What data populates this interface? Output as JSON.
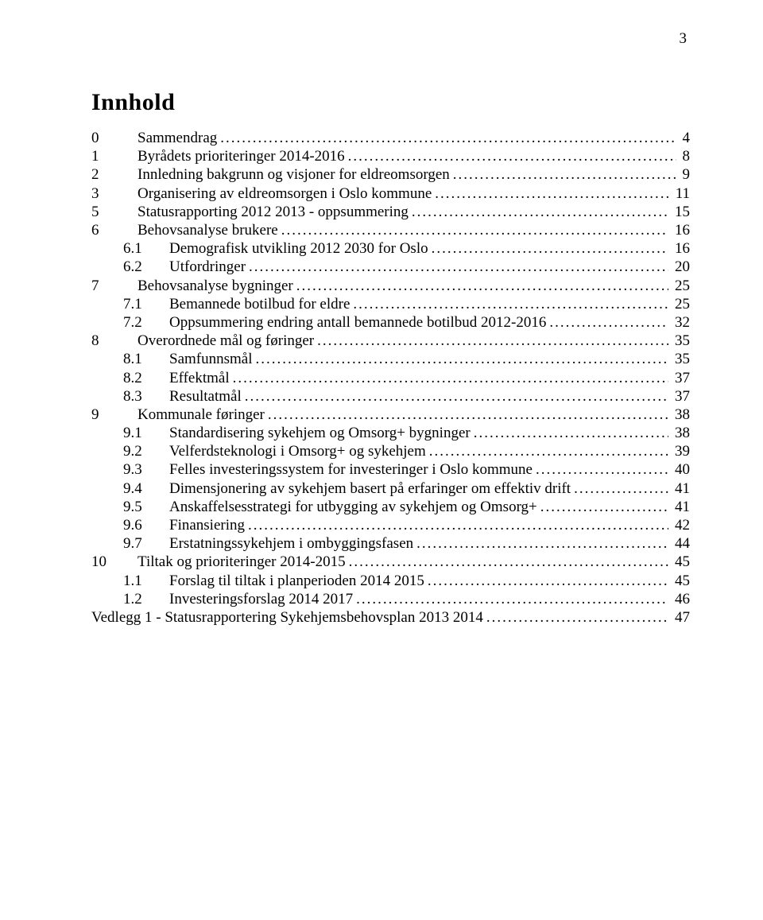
{
  "page_number_top": "3",
  "title": "Innhold",
  "colors": {
    "text": "#000000",
    "background": "#ffffff"
  },
  "typography": {
    "title_fontsize_pt": 22,
    "body_fontsize_pt": 14,
    "font_family": "Times New Roman"
  },
  "toc": [
    {
      "level": 0,
      "num": "0",
      "text": "Sammendrag",
      "page": "4"
    },
    {
      "level": 0,
      "num": "1",
      "text": "Byrådets prioriteringer 2014-2016",
      "page": "8"
    },
    {
      "level": 0,
      "num": "2",
      "text": "Innledning bakgrunn og visjoner for eldreomsorgen",
      "page": "9"
    },
    {
      "level": 0,
      "num": "3",
      "text": "Organisering av eldreomsorgen i Oslo kommune",
      "page": "11"
    },
    {
      "level": 0,
      "num": "5",
      "text": "Statusrapporting 2012 2013 - oppsummering",
      "page": "15"
    },
    {
      "level": 0,
      "num": "6",
      "text": "Behovsanalyse brukere",
      "page": "16"
    },
    {
      "level": 1,
      "num": "6.1",
      "text": "Demografisk utvikling 2012 2030 for Oslo",
      "page": "16"
    },
    {
      "level": 1,
      "num": "6.2",
      "text": "Utfordringer",
      "page": "20"
    },
    {
      "level": 0,
      "num": "7",
      "text": "Behovsanalyse bygninger",
      "page": "25"
    },
    {
      "level": 1,
      "num": "7.1",
      "text": "Bemannede botilbud for eldre",
      "page": "25"
    },
    {
      "level": 1,
      "num": "7.2",
      "text": "Oppsummering endring antall bemannede botilbud 2012-2016",
      "page": "32"
    },
    {
      "level": 0,
      "num": "8",
      "text": "Overordnede mål og føringer",
      "page": "35"
    },
    {
      "level": 1,
      "num": "8.1",
      "text": "Samfunnsmål",
      "page": "35"
    },
    {
      "level": 1,
      "num": "8.2",
      "text": "Effektmål",
      "page": "37"
    },
    {
      "level": 1,
      "num": "8.3",
      "text": "Resultatmål",
      "page": "37"
    },
    {
      "level": 0,
      "num": "9",
      "text": "Kommunale føringer",
      "page": "38"
    },
    {
      "level": 1,
      "num": "9.1",
      "text": "Standardisering sykehjem og Omsorg+ bygninger",
      "page": "38"
    },
    {
      "level": 1,
      "num": "9.2",
      "text": "Velferdsteknologi i Omsorg+ og sykehjem",
      "page": "39"
    },
    {
      "level": 1,
      "num": "9.3",
      "text": "Felles investeringssystem for investeringer i Oslo kommune",
      "page": "40"
    },
    {
      "level": 1,
      "num": "9.4",
      "text": "Dimensjonering av sykehjem basert på erfaringer om effektiv drift",
      "page": "41"
    },
    {
      "level": 1,
      "num": "9.5",
      "text": "Anskaffelsesstrategi for utbygging av sykehjem og Omsorg+",
      "page": "41"
    },
    {
      "level": 1,
      "num": "9.6",
      "text": "Finansiering",
      "page": "42"
    },
    {
      "level": 1,
      "num": "9.7",
      "text": "Erstatningssykehjem i ombyggingsfasen",
      "page": "44"
    },
    {
      "level": 0,
      "num": "10",
      "text": "Tiltak og prioriteringer 2014-2015",
      "page": "45"
    },
    {
      "level": 1,
      "num": "1.1",
      "text": "Forslag til tiltak i planperioden 2014 2015",
      "page": "45"
    },
    {
      "level": 1,
      "num": "1.2",
      "text": "Investeringsforslag 2014 2017",
      "page": "46"
    },
    {
      "level": 0,
      "num": "",
      "text": "Vedlegg 1 - Statusrapportering Sykehjemsbehovsplan 2013 2014",
      "page": "47",
      "noindent": true
    }
  ]
}
